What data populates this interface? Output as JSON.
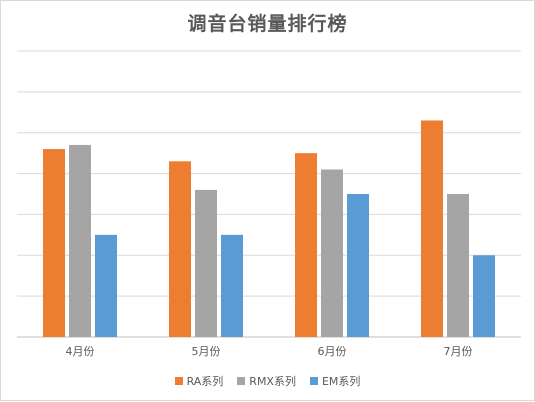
{
  "chart_data": {
    "type": "bar",
    "title": "调音台销量排行榜",
    "xlabel": "",
    "ylabel": "",
    "categories": [
      "4月份",
      "5月份",
      "6月份",
      "7月份"
    ],
    "series": [
      {
        "name": "RA系列",
        "color": "#ED7D31",
        "values": [
          46,
          43,
          45,
          53
        ]
      },
      {
        "name": "RMX系列",
        "color": "#A5A5A5",
        "values": [
          47,
          36,
          41,
          35
        ]
      },
      {
        "name": "EM系列",
        "color": "#5B9BD5",
        "values": [
          25,
          25,
          35,
          20
        ]
      }
    ],
    "ylim": [
      0,
      70
    ],
    "ytick_step": 10,
    "grid": true,
    "legend": "bottom"
  }
}
